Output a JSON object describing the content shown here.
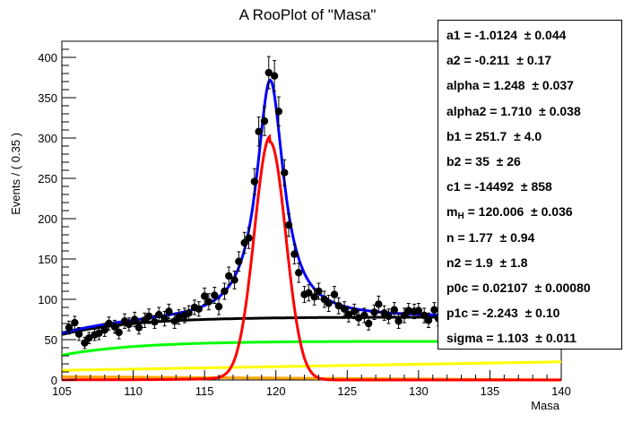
{
  "chart_data": {
    "type": "line",
    "title": "A RooPlot of \"Masa\"",
    "xlabel": "Masa",
    "ylabel": "Events / ( 0.35 )",
    "xlim": [
      105,
      140
    ],
    "ylim": [
      0,
      420
    ],
    "xticks": [
      105,
      110,
      115,
      120,
      125,
      130,
      135,
      140
    ],
    "yticks": [
      0,
      50,
      100,
      150,
      200,
      250,
      300,
      350,
      400
    ],
    "xtick_labels": [
      "105",
      "110",
      "115",
      "120",
      "125",
      "130",
      "135",
      "140"
    ],
    "ytick_labels": [
      "0",
      "50",
      "100",
      "150",
      "200",
      "250",
      "300",
      "350",
      "400"
    ],
    "colors": {
      "data": "#000000",
      "total": "#0000ff",
      "signal": "#ff0000",
      "background": "#000000",
      "green": "#00ff00",
      "yellow": "#ffff00",
      "orange": "#ffa500"
    },
    "points": [
      {
        "x": 105.5,
        "y": 65,
        "e": 8
      },
      {
        "x": 105.9,
        "y": 71,
        "e": 8
      },
      {
        "x": 106.2,
        "y": 57,
        "e": 8
      },
      {
        "x": 106.6,
        "y": 46,
        "e": 7
      },
      {
        "x": 106.9,
        "y": 52,
        "e": 7
      },
      {
        "x": 107.3,
        "y": 56,
        "e": 7
      },
      {
        "x": 107.6,
        "y": 58,
        "e": 8
      },
      {
        "x": 108.0,
        "y": 62,
        "e": 8
      },
      {
        "x": 108.3,
        "y": 70,
        "e": 8
      },
      {
        "x": 108.7,
        "y": 66,
        "e": 8
      },
      {
        "x": 109.0,
        "y": 59,
        "e": 8
      },
      {
        "x": 109.4,
        "y": 73,
        "e": 9
      },
      {
        "x": 109.7,
        "y": 69,
        "e": 8
      },
      {
        "x": 110.1,
        "y": 75,
        "e": 9
      },
      {
        "x": 110.4,
        "y": 65,
        "e": 8
      },
      {
        "x": 110.8,
        "y": 74,
        "e": 9
      },
      {
        "x": 111.1,
        "y": 79,
        "e": 9
      },
      {
        "x": 111.5,
        "y": 72,
        "e": 8
      },
      {
        "x": 111.8,
        "y": 81,
        "e": 9
      },
      {
        "x": 112.2,
        "y": 76,
        "e": 9
      },
      {
        "x": 112.5,
        "y": 85,
        "e": 9
      },
      {
        "x": 112.9,
        "y": 73,
        "e": 9
      },
      {
        "x": 113.2,
        "y": 78,
        "e": 9
      },
      {
        "x": 113.6,
        "y": 80,
        "e": 9
      },
      {
        "x": 113.9,
        "y": 83,
        "e": 9
      },
      {
        "x": 114.3,
        "y": 90,
        "e": 9
      },
      {
        "x": 114.6,
        "y": 88,
        "e": 9
      },
      {
        "x": 115.0,
        "y": 104,
        "e": 10
      },
      {
        "x": 115.3,
        "y": 97,
        "e": 10
      },
      {
        "x": 115.7,
        "y": 105,
        "e": 10
      },
      {
        "x": 116.0,
        "y": 91,
        "e": 10
      },
      {
        "x": 116.4,
        "y": 110,
        "e": 10
      },
      {
        "x": 116.7,
        "y": 129,
        "e": 11
      },
      {
        "x": 117.1,
        "y": 124,
        "e": 11
      },
      {
        "x": 117.4,
        "y": 147,
        "e": 12
      },
      {
        "x": 117.8,
        "y": 170,
        "e": 13
      },
      {
        "x": 118.1,
        "y": 176,
        "e": 13
      },
      {
        "x": 118.5,
        "y": 246,
        "e": 16
      },
      {
        "x": 118.8,
        "y": 308,
        "e": 18
      },
      {
        "x": 119.2,
        "y": 321,
        "e": 18
      },
      {
        "x": 119.5,
        "y": 381,
        "e": 20
      },
      {
        "x": 119.9,
        "y": 377,
        "e": 19
      },
      {
        "x": 120.2,
        "y": 333,
        "e": 18
      },
      {
        "x": 120.6,
        "y": 257,
        "e": 16
      },
      {
        "x": 120.9,
        "y": 192,
        "e": 14
      },
      {
        "x": 121.3,
        "y": 156,
        "e": 12
      },
      {
        "x": 121.6,
        "y": 133,
        "e": 12
      },
      {
        "x": 122.0,
        "y": 106,
        "e": 10
      },
      {
        "x": 122.3,
        "y": 108,
        "e": 10
      },
      {
        "x": 122.7,
        "y": 103,
        "e": 10
      },
      {
        "x": 123.0,
        "y": 110,
        "e": 10
      },
      {
        "x": 123.4,
        "y": 100,
        "e": 10
      },
      {
        "x": 123.7,
        "y": 95,
        "e": 10
      },
      {
        "x": 124.1,
        "y": 106,
        "e": 10
      },
      {
        "x": 124.4,
        "y": 92,
        "e": 10
      },
      {
        "x": 124.8,
        "y": 88,
        "e": 9
      },
      {
        "x": 125.1,
        "y": 81,
        "e": 9
      },
      {
        "x": 125.5,
        "y": 85,
        "e": 9
      },
      {
        "x": 125.8,
        "y": 77,
        "e": 9
      },
      {
        "x": 126.2,
        "y": 80,
        "e": 9
      },
      {
        "x": 126.5,
        "y": 70,
        "e": 8
      },
      {
        "x": 126.9,
        "y": 84,
        "e": 9
      },
      {
        "x": 127.2,
        "y": 94,
        "e": 10
      },
      {
        "x": 127.6,
        "y": 83,
        "e": 9
      },
      {
        "x": 127.9,
        "y": 79,
        "e": 9
      },
      {
        "x": 128.3,
        "y": 87,
        "e": 9
      },
      {
        "x": 128.6,
        "y": 73,
        "e": 9
      },
      {
        "x": 129.0,
        "y": 80,
        "e": 9
      },
      {
        "x": 129.3,
        "y": 86,
        "e": 9
      },
      {
        "x": 129.7,
        "y": 85,
        "e": 9
      },
      {
        "x": 130.0,
        "y": 86,
        "e": 9
      },
      {
        "x": 130.4,
        "y": 80,
        "e": 9
      },
      {
        "x": 130.7,
        "y": 74,
        "e": 9
      },
      {
        "x": 131.1,
        "y": 87,
        "e": 9
      },
      {
        "x": 131.4,
        "y": 76,
        "e": 9
      }
    ],
    "stats": [
      {
        "label": "a1 =",
        "value": "-1.0124",
        "error": "0.044"
      },
      {
        "label": "a2 =",
        "value": "-0.211",
        "error": "0.17"
      },
      {
        "label": "alpha =",
        "value": "1.248",
        "error": "0.037"
      },
      {
        "label": "alpha2 =",
        "value": "1.710",
        "error": "0.038"
      },
      {
        "label": "b1 =",
        "value": "251.7",
        "error": "4.0"
      },
      {
        "label": "b2 =",
        "value": "35",
        "error": "26"
      },
      {
        "label": "c1 =",
        "value": "-14492",
        "error": "858"
      },
      {
        "label": "m",
        "sub": "H",
        "label_after": " =",
        "value": "120.006",
        "error": "0.036"
      },
      {
        "label": "n =",
        "value": "1.77",
        "error": "0.94"
      },
      {
        "label": "n2 =",
        "value": "1.9",
        "error": "1.8"
      },
      {
        "label": "p0c =",
        "value": "0.02107",
        "error": "0.00080"
      },
      {
        "label": "p1c =",
        "value": "-2.243",
        "error": "0.10"
      },
      {
        "label": "sigma =",
        "value": "1.103",
        "error": "0.011"
      }
    ]
  }
}
